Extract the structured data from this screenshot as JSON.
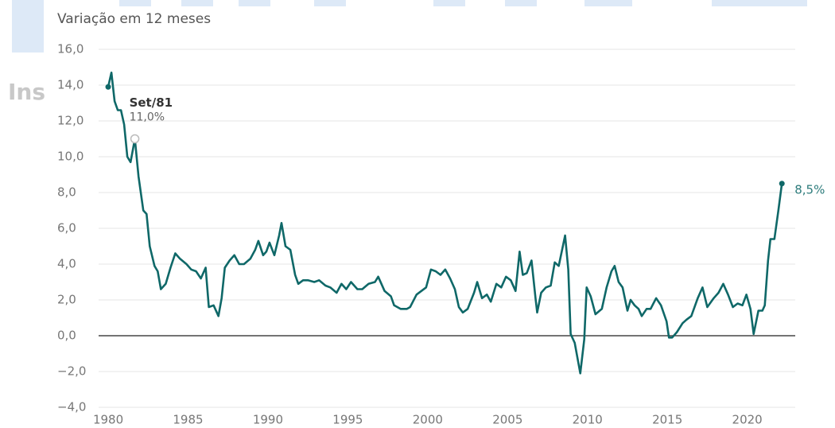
{
  "background_text": "Ins",
  "chart_data": {
    "type": "line",
    "subtitle": "Variação em 12 meses",
    "color": "#0f6868",
    "grid": true,
    "xlim": [
      1979.6,
      2024.0
    ],
    "xticks": [
      1980,
      1985,
      1990,
      1995,
      2000,
      2005,
      2010,
      2015,
      2020
    ],
    "ylim": [
      -4,
      16
    ],
    "yticks": [
      {
        "value": -4,
        "label": "−4,0"
      },
      {
        "value": -2,
        "label": "−2,0"
      },
      {
        "value": 0,
        "label": "0,0"
      },
      {
        "value": 2,
        "label": "2,0"
      },
      {
        "value": 4,
        "label": "4,0"
      },
      {
        "value": 6,
        "label": "6,0"
      },
      {
        "value": 8,
        "label": "8,0"
      },
      {
        "value": 10,
        "label": "10,0"
      },
      {
        "value": 12,
        "label": "12,0"
      },
      {
        "value": 14,
        "label": "14,0"
      },
      {
        "value": 16,
        "label": "16,0"
      }
    ],
    "x": [
      1980.0,
      1980.2,
      1980.4,
      1980.6,
      1980.8,
      1981.0,
      1981.2,
      1981.4,
      1981.67,
      1981.9,
      1982.2,
      1982.4,
      1982.6,
      1982.9,
      1983.1,
      1983.3,
      1983.6,
      1983.9,
      1984.2,
      1984.5,
      1984.9,
      1985.2,
      1985.5,
      1985.8,
      1986.1,
      1986.3,
      1986.6,
      1986.9,
      1987.1,
      1987.3,
      1987.6,
      1987.9,
      1988.2,
      1988.5,
      1988.9,
      1989.2,
      1989.4,
      1989.7,
      1989.9,
      1990.1,
      1990.4,
      1990.7,
      1990.85,
      1991.1,
      1991.4,
      1991.7,
      1991.9,
      1992.2,
      1992.5,
      1992.9,
      1993.2,
      1993.6,
      1993.9,
      1994.3,
      1994.6,
      1994.9,
      1995.2,
      1995.6,
      1995.9,
      1996.3,
      1996.7,
      1996.9,
      1997.3,
      1997.7,
      1997.9,
      1998.3,
      1998.7,
      1998.9,
      1999.3,
      1999.6,
      1999.9,
      2000.2,
      2000.5,
      2000.8,
      2001.1,
      2001.4,
      2001.7,
      2001.95,
      2002.2,
      2002.5,
      2002.9,
      2003.1,
      2003.4,
      2003.7,
      2003.95,
      2004.3,
      2004.6,
      2004.9,
      2005.2,
      2005.5,
      2005.75,
      2005.95,
      2006.2,
      2006.5,
      2006.75,
      2006.85,
      2007.1,
      2007.4,
      2007.7,
      2007.95,
      2008.2,
      2008.6,
      2008.8,
      2008.95,
      2009.2,
      2009.55,
      2009.8,
      2009.95,
      2010.2,
      2010.5,
      2010.9,
      2011.2,
      2011.5,
      2011.7,
      2011.95,
      2012.2,
      2012.5,
      2012.7,
      2012.95,
      2013.2,
      2013.4,
      2013.7,
      2013.95,
      2014.3,
      2014.6,
      2014.95,
      2015.1,
      2015.3,
      2015.6,
      2015.95,
      2016.2,
      2016.5,
      2016.9,
      2017.2,
      2017.5,
      2017.9,
      2018.2,
      2018.5,
      2018.8,
      2019.1,
      2019.4,
      2019.7,
      2019.95,
      2020.2,
      2020.4,
      2020.7,
      2020.95,
      2021.1,
      2021.3,
      2021.45,
      2021.7,
      2021.95,
      2022.17
    ],
    "values": [
      13.9,
      14.7,
      13.1,
      12.6,
      12.6,
      11.8,
      10.0,
      9.7,
      11.0,
      8.9,
      7.0,
      6.8,
      5.0,
      3.9,
      3.6,
      2.6,
      2.9,
      3.8,
      4.6,
      4.3,
      4.0,
      3.7,
      3.6,
      3.2,
      3.8,
      1.6,
      1.7,
      1.1,
      2.1,
      3.8,
      4.2,
      4.5,
      4.0,
      4.0,
      4.3,
      4.8,
      5.3,
      4.5,
      4.7,
      5.2,
      4.5,
      5.6,
      6.3,
      5.0,
      4.8,
      3.4,
      2.9,
      3.1,
      3.1,
      3.0,
      3.1,
      2.8,
      2.7,
      2.4,
      2.9,
      2.6,
      3.0,
      2.6,
      2.6,
      2.9,
      3.0,
      3.3,
      2.5,
      2.2,
      1.7,
      1.5,
      1.5,
      1.6,
      2.3,
      2.5,
      2.7,
      3.7,
      3.6,
      3.4,
      3.7,
      3.2,
      2.6,
      1.6,
      1.3,
      1.5,
      2.4,
      3.0,
      2.1,
      2.3,
      1.9,
      2.9,
      2.7,
      3.3,
      3.1,
      2.5,
      4.7,
      3.4,
      3.5,
      4.2,
      2.1,
      1.3,
      2.4,
      2.7,
      2.8,
      4.1,
      3.9,
      5.6,
      3.7,
      0.1,
      -0.4,
      -2.1,
      -0.2,
      2.7,
      2.2,
      1.2,
      1.5,
      2.7,
      3.6,
      3.9,
      3.0,
      2.7,
      1.4,
      2.0,
      1.7,
      1.5,
      1.1,
      1.5,
      1.5,
      2.1,
      1.7,
      0.8,
      -0.1,
      -0.1,
      0.2,
      0.7,
      0.9,
      1.1,
      2.1,
      2.7,
      1.6,
      2.1,
      2.4,
      2.9,
      2.3,
      1.6,
      1.8,
      1.7,
      2.3,
      1.5,
      0.1,
      1.4,
      1.4,
      1.7,
      4.2,
      5.4,
      5.4,
      7.0,
      8.5
    ],
    "annotations": [
      {
        "x": 1981.67,
        "y": 11.0,
        "title": "Set/81",
        "text": "11,0%"
      },
      {
        "x": 2022.17,
        "y": 8.5,
        "text": "8,5%"
      }
    ]
  }
}
